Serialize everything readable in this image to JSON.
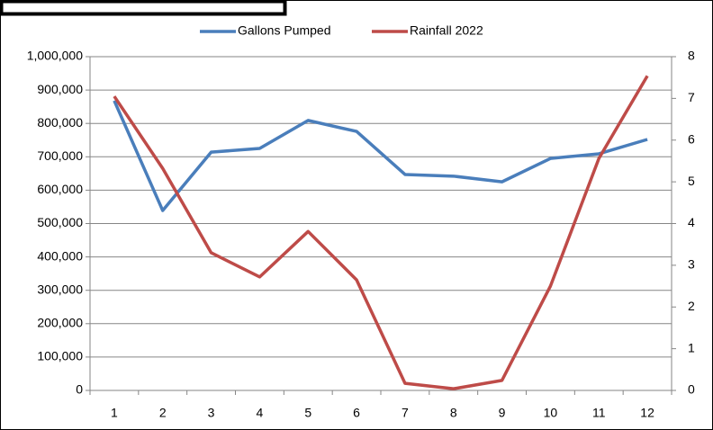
{
  "chart_data": {
    "type": "line",
    "categories": [
      "1",
      "2",
      "3",
      "4",
      "5",
      "6",
      "7",
      "8",
      "9",
      "10",
      "11",
      "12"
    ],
    "series": [
      {
        "name": "Gallons Pumped",
        "color": "#4a7ebb",
        "values": [
          868000,
          539000,
          714000,
          725000,
          809000,
          776000,
          647000,
          642000,
          625000,
          695000,
          709000,
          752000
        ]
      },
      {
        "name": "Rainfall 2022",
        "color": "#be4b48",
        "axis": "y2",
        "values": [
          7.05,
          5.32,
          3.3,
          2.72,
          3.81,
          2.65,
          0.17,
          0.04,
          0.24,
          2.5,
          5.56,
          7.54
        ]
      }
    ],
    "ylim": [
      0,
      1000000
    ],
    "yticks": [
      0,
      {
        "value": 100000,
        "label": "100,000"
      },
      {
        "value": 200000,
        "label": "200,000"
      },
      {
        "value": 300000,
        "label": "300,000"
      },
      {
        "value": 400000,
        "label": "400,000"
      },
      {
        "value": 500000,
        "label": "500,000"
      },
      {
        "value": 600000,
        "label": "600,000"
      },
      {
        "value": 700000,
        "label": "700,000"
      },
      {
        "value": 800000,
        "label": "800,000"
      },
      {
        "value": 900000,
        "label": "900,000"
      },
      {
        "value": 1000000,
        "label": "1,000,000"
      }
    ],
    "y2lim": [
      0,
      8
    ],
    "y2ticks": [
      0,
      1,
      2,
      3,
      4,
      5,
      6,
      7,
      8
    ],
    "grid": true,
    "legend": "top"
  }
}
